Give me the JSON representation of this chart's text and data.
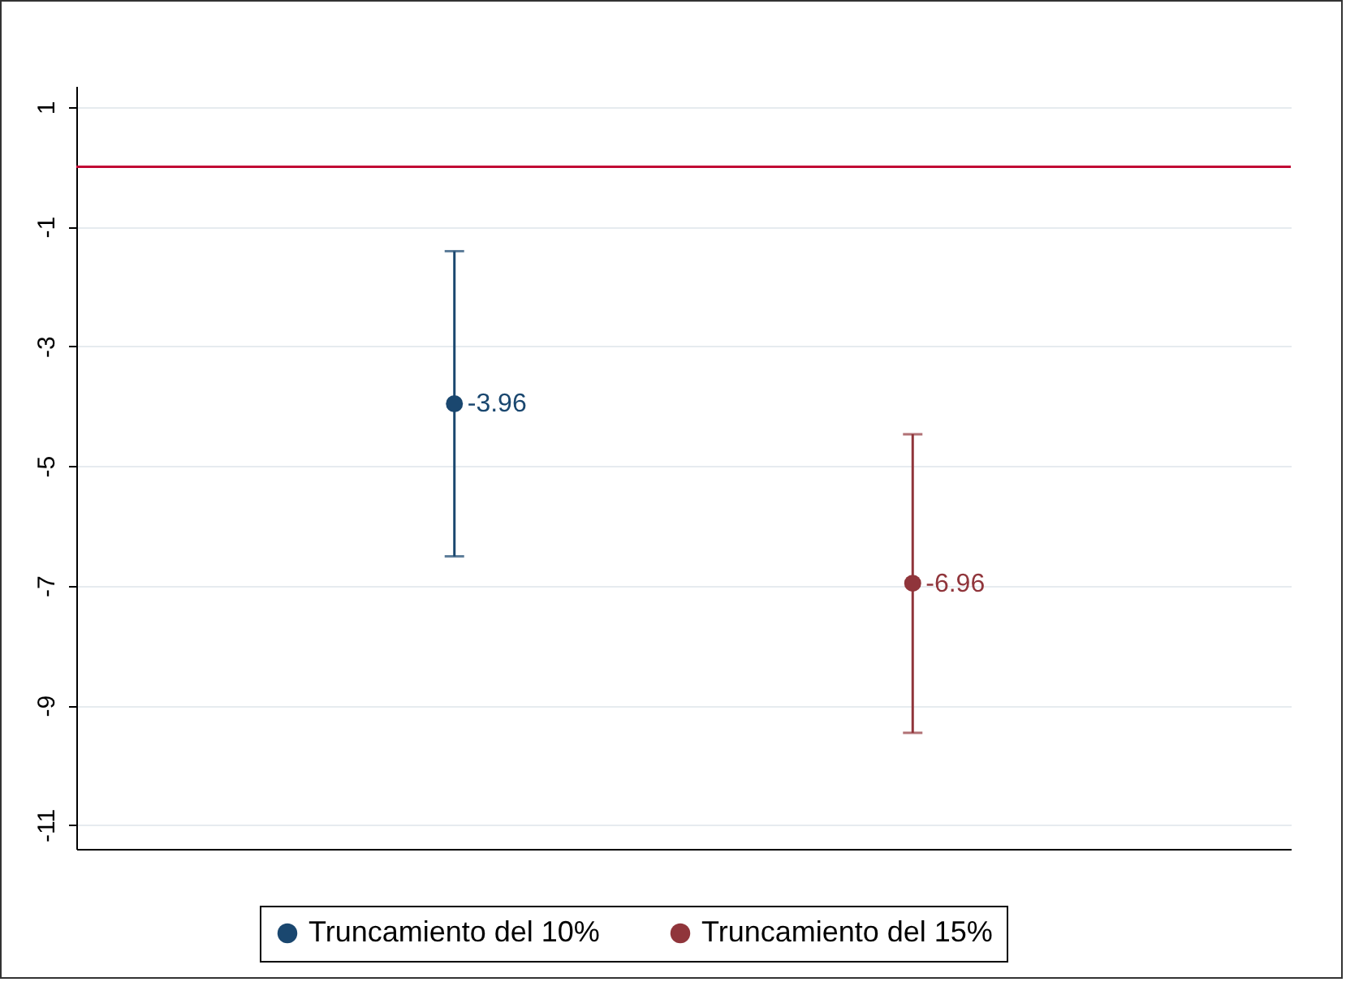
{
  "chart_data": {
    "type": "scatter",
    "categories": [
      null,
      null
    ],
    "series": [
      {
        "name": "Truncamiento del 10%",
        "color": "#1a476f",
        "values": [
          -3.96,
          null
        ],
        "errors": [
          [
            -1.41,
            -6.51
          ],
          null
        ]
      },
      {
        "name": "Truncamiento del 15%",
        "color": "#90353b",
        "values": [
          null,
          -6.96
        ],
        "errors": [
          null,
          [
            -4.47,
            -9.46
          ]
        ]
      }
    ],
    "ylim": [
      -11.4,
      1.35
    ],
    "yticks": [
      1,
      -1,
      -3,
      -5,
      -7,
      -9,
      -11
    ],
    "ref_lines": [
      {
        "axis": "y",
        "value": 0,
        "color": "#c10534"
      }
    ],
    "data_labels": true,
    "grid": "y",
    "legend": "bottom",
    "marker": "circle",
    "tick_labels": "y"
  }
}
